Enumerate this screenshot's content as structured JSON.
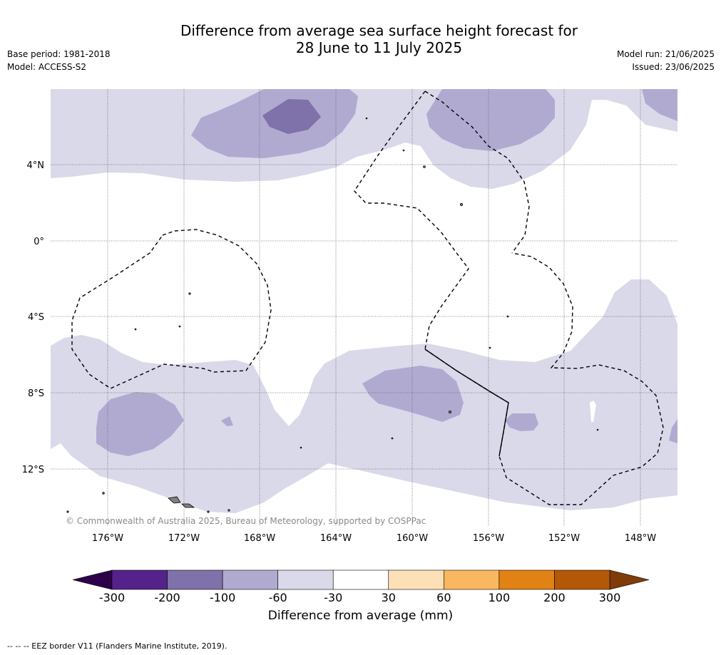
{
  "title_line1": "Difference from average sea surface height forecast for",
  "title_line2": "28 June to 11 July 2025",
  "base_period": "Base period: 1981-2018",
  "model": "Model: ACCESS-S2",
  "model_run": "Model run: 21/06/2025",
  "issued": "Issued: 23/06/2025",
  "copyright": "© Commonwealth of Australia 2025, Bureau of Meteorology, supported by COSPPac",
  "lat_labels": [
    "4°N",
    "0°",
    "4°S",
    "8°S",
    "12°S"
  ],
  "lon_labels": [
    "176°W",
    "172°W",
    "168°W",
    "164°W",
    "160°W",
    "156°W",
    "152°W",
    "148°W"
  ],
  "colorbar": {
    "label": "Difference from average (mm)",
    "ticks": [
      "-300",
      "-200",
      "-100",
      "-60",
      "-30",
      "30",
      "60",
      "100",
      "200",
      "300"
    ],
    "colors": [
      "#55228b",
      "#7f71aa",
      "#b0aad1",
      "#d9d9ea",
      "#ffffff",
      "#fee0b6",
      "#f9b762",
      "#e08214",
      "#b35806"
    ],
    "under_color": "#2d004b",
    "over_color": "#7f3b08"
  },
  "legend_note": "--  --  -- EEZ border V11 (Flanders Marine Institute, 2019).",
  "colors": {
    "level_neg_30_60": "#d9d9ea",
    "level_neg_60_100": "#b0aad1",
    "level_neg_100_200": "#7f71aa",
    "grid": "#666666"
  }
}
